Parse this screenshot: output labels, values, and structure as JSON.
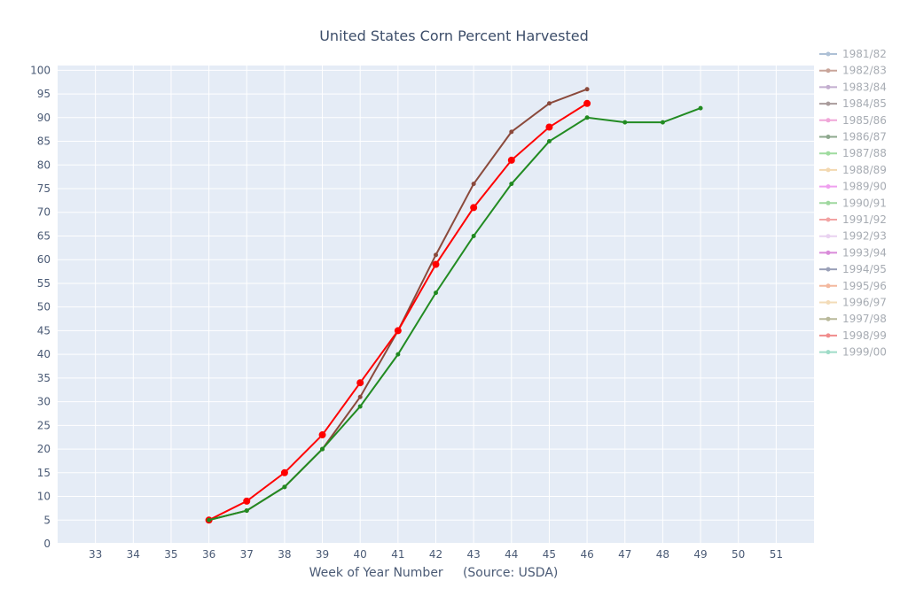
{
  "chart_data": {
    "type": "line",
    "title": "United States Corn Percent Harvested",
    "xlabel": "Week of Year Number     (Source: USDA)",
    "ylabel": "",
    "xlim": [
      32,
      52
    ],
    "ylim": [
      0,
      101
    ],
    "x_ticks": [
      33,
      34,
      35,
      36,
      37,
      38,
      39,
      40,
      41,
      42,
      43,
      44,
      45,
      46,
      47,
      48,
      49,
      50,
      51
    ],
    "y_ticks": [
      0,
      5,
      10,
      15,
      20,
      25,
      30,
      35,
      40,
      45,
      50,
      55,
      60,
      65,
      70,
      75,
      80,
      85,
      90,
      95,
      100
    ],
    "grid": true,
    "background": "#e5ecf6",
    "legend_position": "right",
    "legend": [
      {
        "name": "1981/82",
        "color": "#aec1d6"
      },
      {
        "name": "1982/83",
        "color": "#c9a59a"
      },
      {
        "name": "1983/84",
        "color": "#c3aecf"
      },
      {
        "name": "1984/85",
        "color": "#a99b9b"
      },
      {
        "name": "1985/86",
        "color": "#f0a6d8"
      },
      {
        "name": "1986/87",
        "color": "#8ea88e"
      },
      {
        "name": "1987/88",
        "color": "#9fdc9f"
      },
      {
        "name": "1988/89",
        "color": "#f3d8b0"
      },
      {
        "name": "1989/90",
        "color": "#ef9fef"
      },
      {
        "name": "1990/91",
        "color": "#9fd89f"
      },
      {
        "name": "1991/92",
        "color": "#f2a3a3"
      },
      {
        "name": "1992/93",
        "color": "#e9d2f0"
      },
      {
        "name": "1993/94",
        "color": "#d98bd9"
      },
      {
        "name": "1994/95",
        "color": "#9aa0b8"
      },
      {
        "name": "1995/96",
        "color": "#f3b89e"
      },
      {
        "name": "1996/97",
        "color": "#f3dcb8"
      },
      {
        "name": "1997/98",
        "color": "#b9b99a"
      },
      {
        "name": "1998/99",
        "color": "#f08c8c"
      },
      {
        "name": "1999/00",
        "color": "#9fdcc8"
      }
    ],
    "series": [
      {
        "color": "#8b4a3c",
        "marker": "small",
        "x": [
          36,
          37,
          38,
          39,
          40,
          41,
          42,
          43,
          44,
          45,
          46
        ],
        "values": [
          5,
          7,
          12,
          20,
          31,
          45,
          61,
          76,
          87,
          93,
          96
        ]
      },
      {
        "color": "#ff0000",
        "marker": "large",
        "x": [
          36,
          37,
          38,
          39,
          40,
          41,
          42,
          43,
          44,
          45,
          46
        ],
        "values": [
          5,
          9,
          15,
          23,
          34,
          45,
          59,
          71,
          81,
          88,
          93
        ]
      },
      {
        "color": "#228b22",
        "marker": "small",
        "x": [
          36,
          37,
          38,
          39,
          40,
          41,
          42,
          43,
          44,
          45,
          46,
          47,
          48,
          49
        ],
        "values": [
          5,
          7,
          12,
          20,
          29,
          40,
          53,
          65,
          76,
          85,
          90,
          89,
          89,
          92
        ]
      }
    ]
  }
}
